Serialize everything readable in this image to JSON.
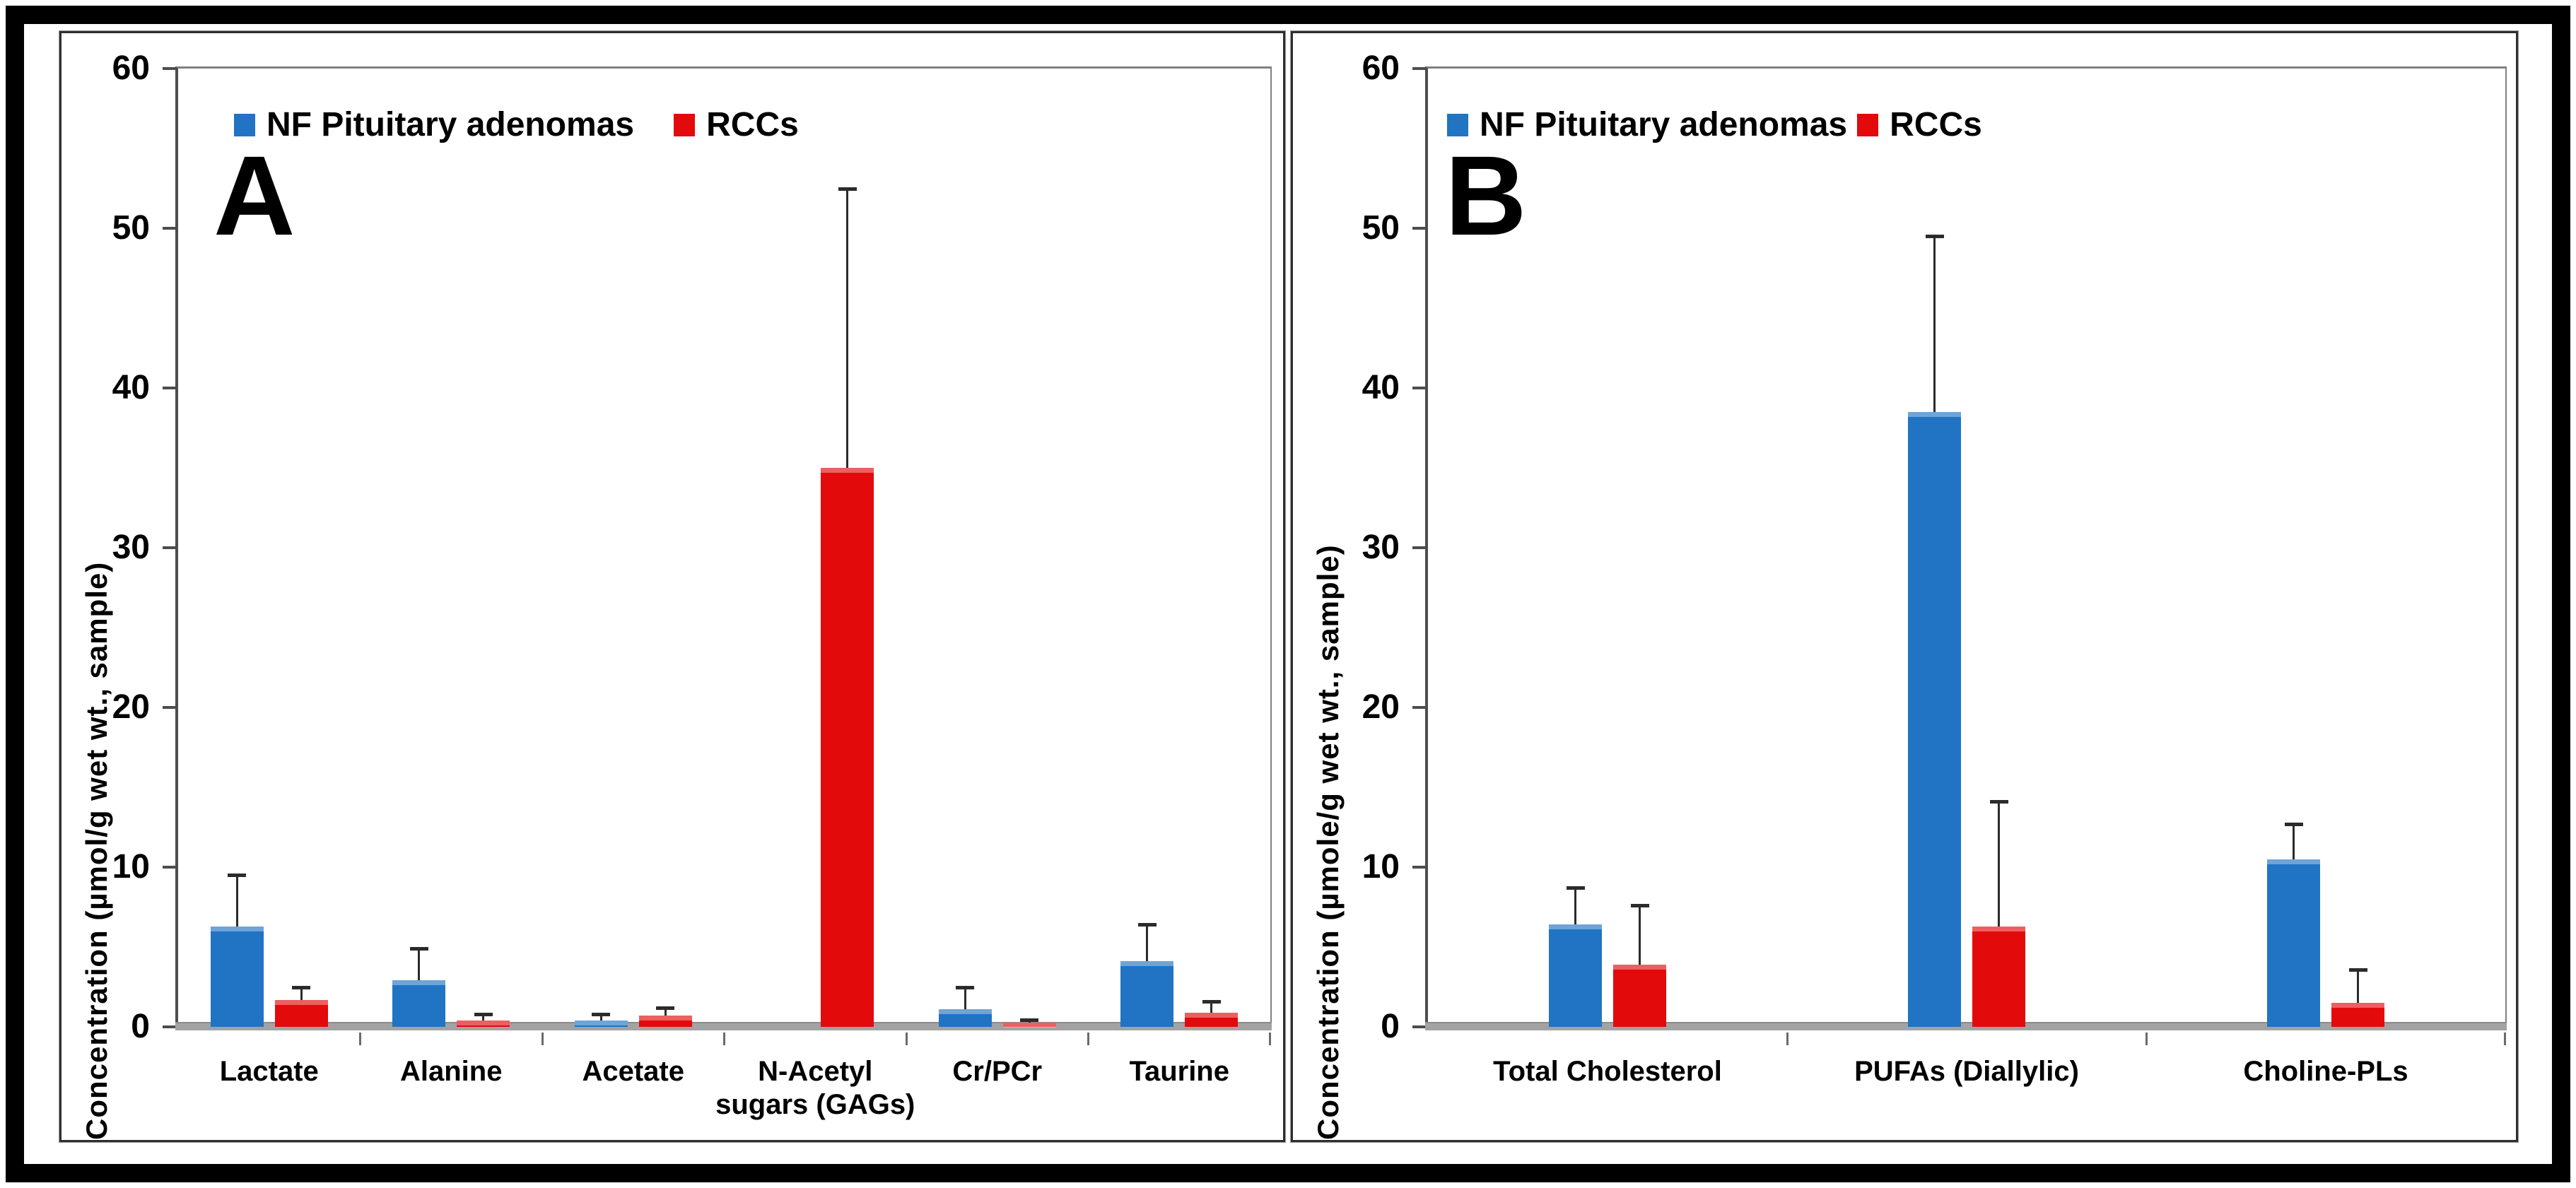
{
  "colors": {
    "nf_blue": "#2173c4",
    "rcc_red": "#e30a0c",
    "baseline_gray": "#a3a3a3",
    "axis_gray": "#4d4d4d",
    "plot_border_gray": "#808080"
  },
  "chart_data": [
    {
      "type": "bar",
      "panel_label": "A",
      "ylabel": "Concentration (µmol/g wet wt., sample)",
      "xlabel": "",
      "ylim": [
        0,
        60
      ],
      "yticks": [
        0,
        10,
        20,
        30,
        40,
        50,
        60
      ],
      "grid": false,
      "legend_position": "top-left-inside",
      "error_bars": "upper-only",
      "categories": [
        "Lactate",
        "Alanine",
        "Acetate",
        "N-Acetyl sugars (GAGs)",
        "Cr/PCr",
        "Taurine"
      ],
      "series": [
        {
          "name": "NF Pituitary adenomas",
          "color": "#2173c4",
          "values": [
            6.3,
            2.9,
            0.4,
            0,
            1.1,
            4.1
          ],
          "errors": [
            3.2,
            2.0,
            0.4,
            0,
            1.4,
            2.3
          ]
        },
        {
          "name": "RCCs",
          "color": "#e30a0c",
          "values": [
            1.7,
            0.4,
            0.7,
            35.0,
            0.25,
            0.9
          ],
          "errors": [
            0.8,
            0.4,
            0.5,
            17.5,
            0.2,
            0.7
          ]
        }
      ]
    },
    {
      "type": "bar",
      "panel_label": "B",
      "ylabel": "Concentration (µmole/g wet wt., sample)",
      "xlabel": "",
      "ylim": [
        0,
        60
      ],
      "yticks": [
        0,
        10,
        20,
        30,
        40,
        50,
        60
      ],
      "grid": false,
      "legend_position": "top-left-inside",
      "error_bars": "upper-only",
      "categories": [
        "Total Cholesterol",
        "PUFAs (Diallylic)",
        "Choline-PLs"
      ],
      "series": [
        {
          "name": "NF Pituitary adenomas",
          "color": "#2173c4",
          "values": [
            6.4,
            38.5,
            10.5
          ],
          "errors": [
            2.3,
            11.0,
            2.2
          ]
        },
        {
          "name": "RCCs",
          "color": "#e30a0c",
          "values": [
            3.9,
            6.3,
            1.5
          ],
          "errors": [
            3.7,
            7.8,
            2.1
          ]
        }
      ]
    }
  ]
}
